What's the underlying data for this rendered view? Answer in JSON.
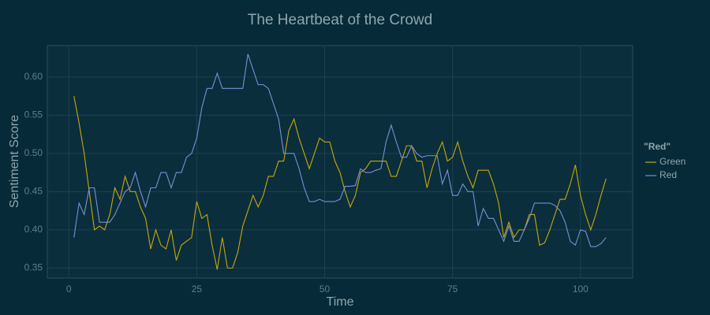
{
  "chart_data": {
    "type": "line",
    "title": "The Heartbeat of the Crowd",
    "x_label": "Time",
    "y_label": "Sentiment Score",
    "legend_title": "\"Red\"",
    "legend_position": "right",
    "grid": true,
    "xlim": [
      -4.2,
      110.2
    ],
    "xticks": [
      0,
      25,
      50,
      75,
      100
    ],
    "ylim": [
      0.337,
      0.641
    ],
    "yticks": [
      0.35,
      {
        "value": 0.4,
        "label": "0.40"
      },
      0.45,
      {
        "value": 0.5,
        "label": "0.50"
      },
      0.55,
      {
        "value": 0.6,
        "label": "0.60"
      }
    ],
    "x": [
      1,
      2,
      3,
      4,
      5,
      6,
      7,
      8,
      9,
      10,
      11,
      12,
      13,
      14,
      15,
      16,
      17,
      18,
      19,
      20,
      21,
      22,
      23,
      24,
      25,
      26,
      27,
      28,
      29,
      30,
      31,
      32,
      33,
      34,
      35,
      36,
      37,
      38,
      39,
      40,
      41,
      42,
      43,
      44,
      45,
      46,
      47,
      48,
      49,
      50,
      51,
      52,
      53,
      54,
      55,
      56,
      57,
      58,
      59,
      60,
      61,
      62,
      63,
      64,
      65,
      66,
      67,
      68,
      69,
      70,
      71,
      72,
      73,
      74,
      75,
      76,
      77,
      78,
      79,
      80,
      81,
      82,
      83,
      84,
      85,
      86,
      87,
      88,
      89,
      90,
      91,
      92,
      93,
      94,
      95,
      96,
      97,
      98,
      99,
      100,
      101,
      102,
      103,
      104,
      105
    ],
    "series": [
      {
        "name": "Green",
        "color": "#c9a80a",
        "values": [
          0.575,
          0.54,
          0.5,
          0.45,
          0.4,
          0.405,
          0.4,
          0.42,
          0.455,
          0.44,
          0.47,
          0.45,
          0.45,
          0.43,
          0.415,
          0.375,
          0.4,
          0.38,
          0.375,
          0.4,
          0.36,
          0.38,
          0.385,
          0.39,
          0.437,
          0.415,
          0.42,
          0.38,
          0.348,
          0.39,
          0.35,
          0.35,
          0.37,
          0.405,
          0.425,
          0.445,
          0.43,
          0.445,
          0.47,
          0.47,
          0.49,
          0.49,
          0.53,
          0.545,
          0.52,
          0.5,
          0.48,
          0.5,
          0.52,
          0.515,
          0.515,
          0.49,
          0.475,
          0.45,
          0.43,
          0.445,
          0.475,
          0.48,
          0.49,
          0.49,
          0.49,
          0.49,
          0.47,
          0.47,
          0.49,
          0.51,
          0.51,
          0.49,
          0.49,
          0.455,
          0.48,
          0.5,
          0.515,
          0.49,
          0.495,
          0.515,
          0.49,
          0.47,
          0.455,
          0.478,
          0.478,
          0.478,
          0.46,
          0.435,
          0.39,
          0.41,
          0.39,
          0.4,
          0.4,
          0.42,
          0.42,
          0.38,
          0.383,
          0.4,
          0.42,
          0.44,
          0.44,
          0.46,
          0.485,
          0.445,
          0.42,
          0.4,
          0.42,
          0.445,
          0.467
        ]
      },
      {
        "name": "Red",
        "color": "#7b8fd6",
        "values": [
          0.39,
          0.435,
          0.42,
          0.455,
          0.455,
          0.41,
          0.41,
          0.41,
          0.42,
          0.435,
          0.45,
          0.455,
          0.475,
          0.45,
          0.43,
          0.455,
          0.455,
          0.475,
          0.475,
          0.455,
          0.475,
          0.475,
          0.495,
          0.5,
          0.52,
          0.56,
          0.585,
          0.585,
          0.605,
          0.585,
          0.585,
          0.585,
          0.585,
          0.585,
          0.63,
          0.61,
          0.59,
          0.59,
          0.585,
          0.565,
          0.545,
          0.5,
          0.5,
          0.5,
          0.48,
          0.455,
          0.437,
          0.437,
          0.44,
          0.437,
          0.437,
          0.437,
          0.44,
          0.457,
          0.457,
          0.458,
          0.48,
          0.475,
          0.475,
          0.478,
          0.48,
          0.515,
          0.537,
          0.515,
          0.495,
          0.495,
          0.51,
          0.5,
          0.495,
          0.497,
          0.497,
          0.497,
          0.46,
          0.478,
          0.445,
          0.445,
          0.46,
          0.45,
          0.45,
          0.405,
          0.428,
          0.415,
          0.415,
          0.4,
          0.385,
          0.405,
          0.385,
          0.385,
          0.4,
          0.415,
          0.435,
          0.435,
          0.435,
          0.435,
          0.432,
          0.425,
          0.41,
          0.385,
          0.38,
          0.4,
          0.398,
          0.378,
          0.378,
          0.382,
          0.39
        ]
      }
    ]
  }
}
